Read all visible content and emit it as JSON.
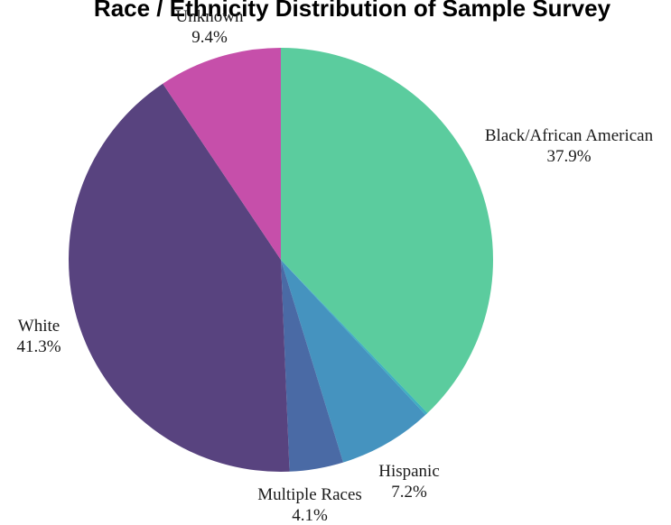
{
  "chart_data": {
    "type": "pie",
    "title": "Race / Ethnicity Distribution of Sample Survey",
    "start_angle_deg": 0,
    "direction": "clockwise",
    "slices": [
      {
        "label": "Black/African American",
        "value": 37.9,
        "value_label": "37.9%",
        "color": "#5bcc9e"
      },
      {
        "label": "",
        "value": 0.2,
        "value_label": "",
        "color": "#3fb0c0"
      },
      {
        "label": "Hispanic",
        "value": 7.2,
        "value_label": "7.2%",
        "color": "#4593bf"
      },
      {
        "label": "Multiple Races",
        "value": 4.1,
        "value_label": "4.1%",
        "color": "#4a6aa5"
      },
      {
        "label": "White",
        "value": 41.3,
        "value_label": "41.3%",
        "color": "#58437f"
      },
      {
        "label": "Unknown",
        "value": 9.4,
        "value_label": "9.4%",
        "color": "#c64faa"
      }
    ]
  }
}
